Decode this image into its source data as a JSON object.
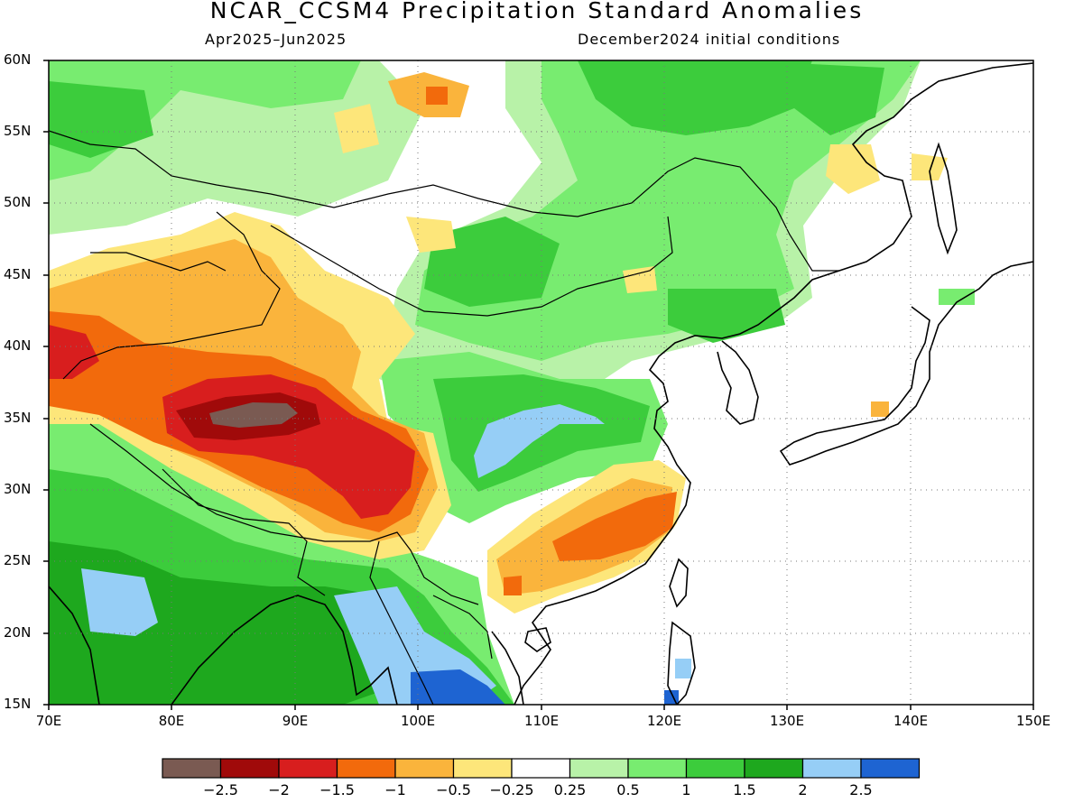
{
  "title": "NCAR_CCSM4 Precipitation Standard Anomalies",
  "period": "Apr2025–Jun2025",
  "init": "December2024 initial conditions",
  "lat_labels": [
    "60N",
    "55N",
    "50N",
    "45N",
    "40N",
    "35N",
    "30N",
    "25N",
    "20N",
    "15N"
  ],
  "lon_labels": [
    "70E",
    "80E",
    "90E",
    "100E",
    "110E",
    "120E",
    "130E",
    "140E",
    "150E"
  ],
  "map": {
    "lon_range": [
      70,
      150
    ],
    "lat_range": [
      15,
      60
    ],
    "gridlines": true
  },
  "colorbar": {
    "labels": [
      "−2.5",
      "−2",
      "−1.5",
      "−1",
      "−0.5",
      "−0.25",
      "0.25",
      "0.5",
      "1",
      "1.5",
      "2",
      "2.5"
    ],
    "colors": [
      "#7a5a52",
      "#a00a0a",
      "#d81e1e",
      "#f26a0c",
      "#fab43c",
      "#fde67a",
      "#ffffff",
      "#b8f2a8",
      "#78ec70",
      "#3ccc3c",
      "#1ea81e",
      "#96cef6",
      "#1e64d2"
    ]
  },
  "anomaly_colors": {
    "lt_-2.5": "#7a5a52",
    "-2.5_-2": "#a00a0a",
    "-2_-1.5": "#d81e1e",
    "-1.5_-1": "#f26a0c",
    "-1_-0.5": "#fab43c",
    "-0.5_-0.25": "#fde67a",
    "neutral": "#ffffff",
    "0.25_0.5": "#b8f2a8",
    "0.5_1": "#78ec70",
    "1_1.5": "#3ccc3c",
    "1.5_2": "#1ea81e",
    "2_2.5": "#96cef6",
    "gt_2.5": "#1e64d2"
  }
}
